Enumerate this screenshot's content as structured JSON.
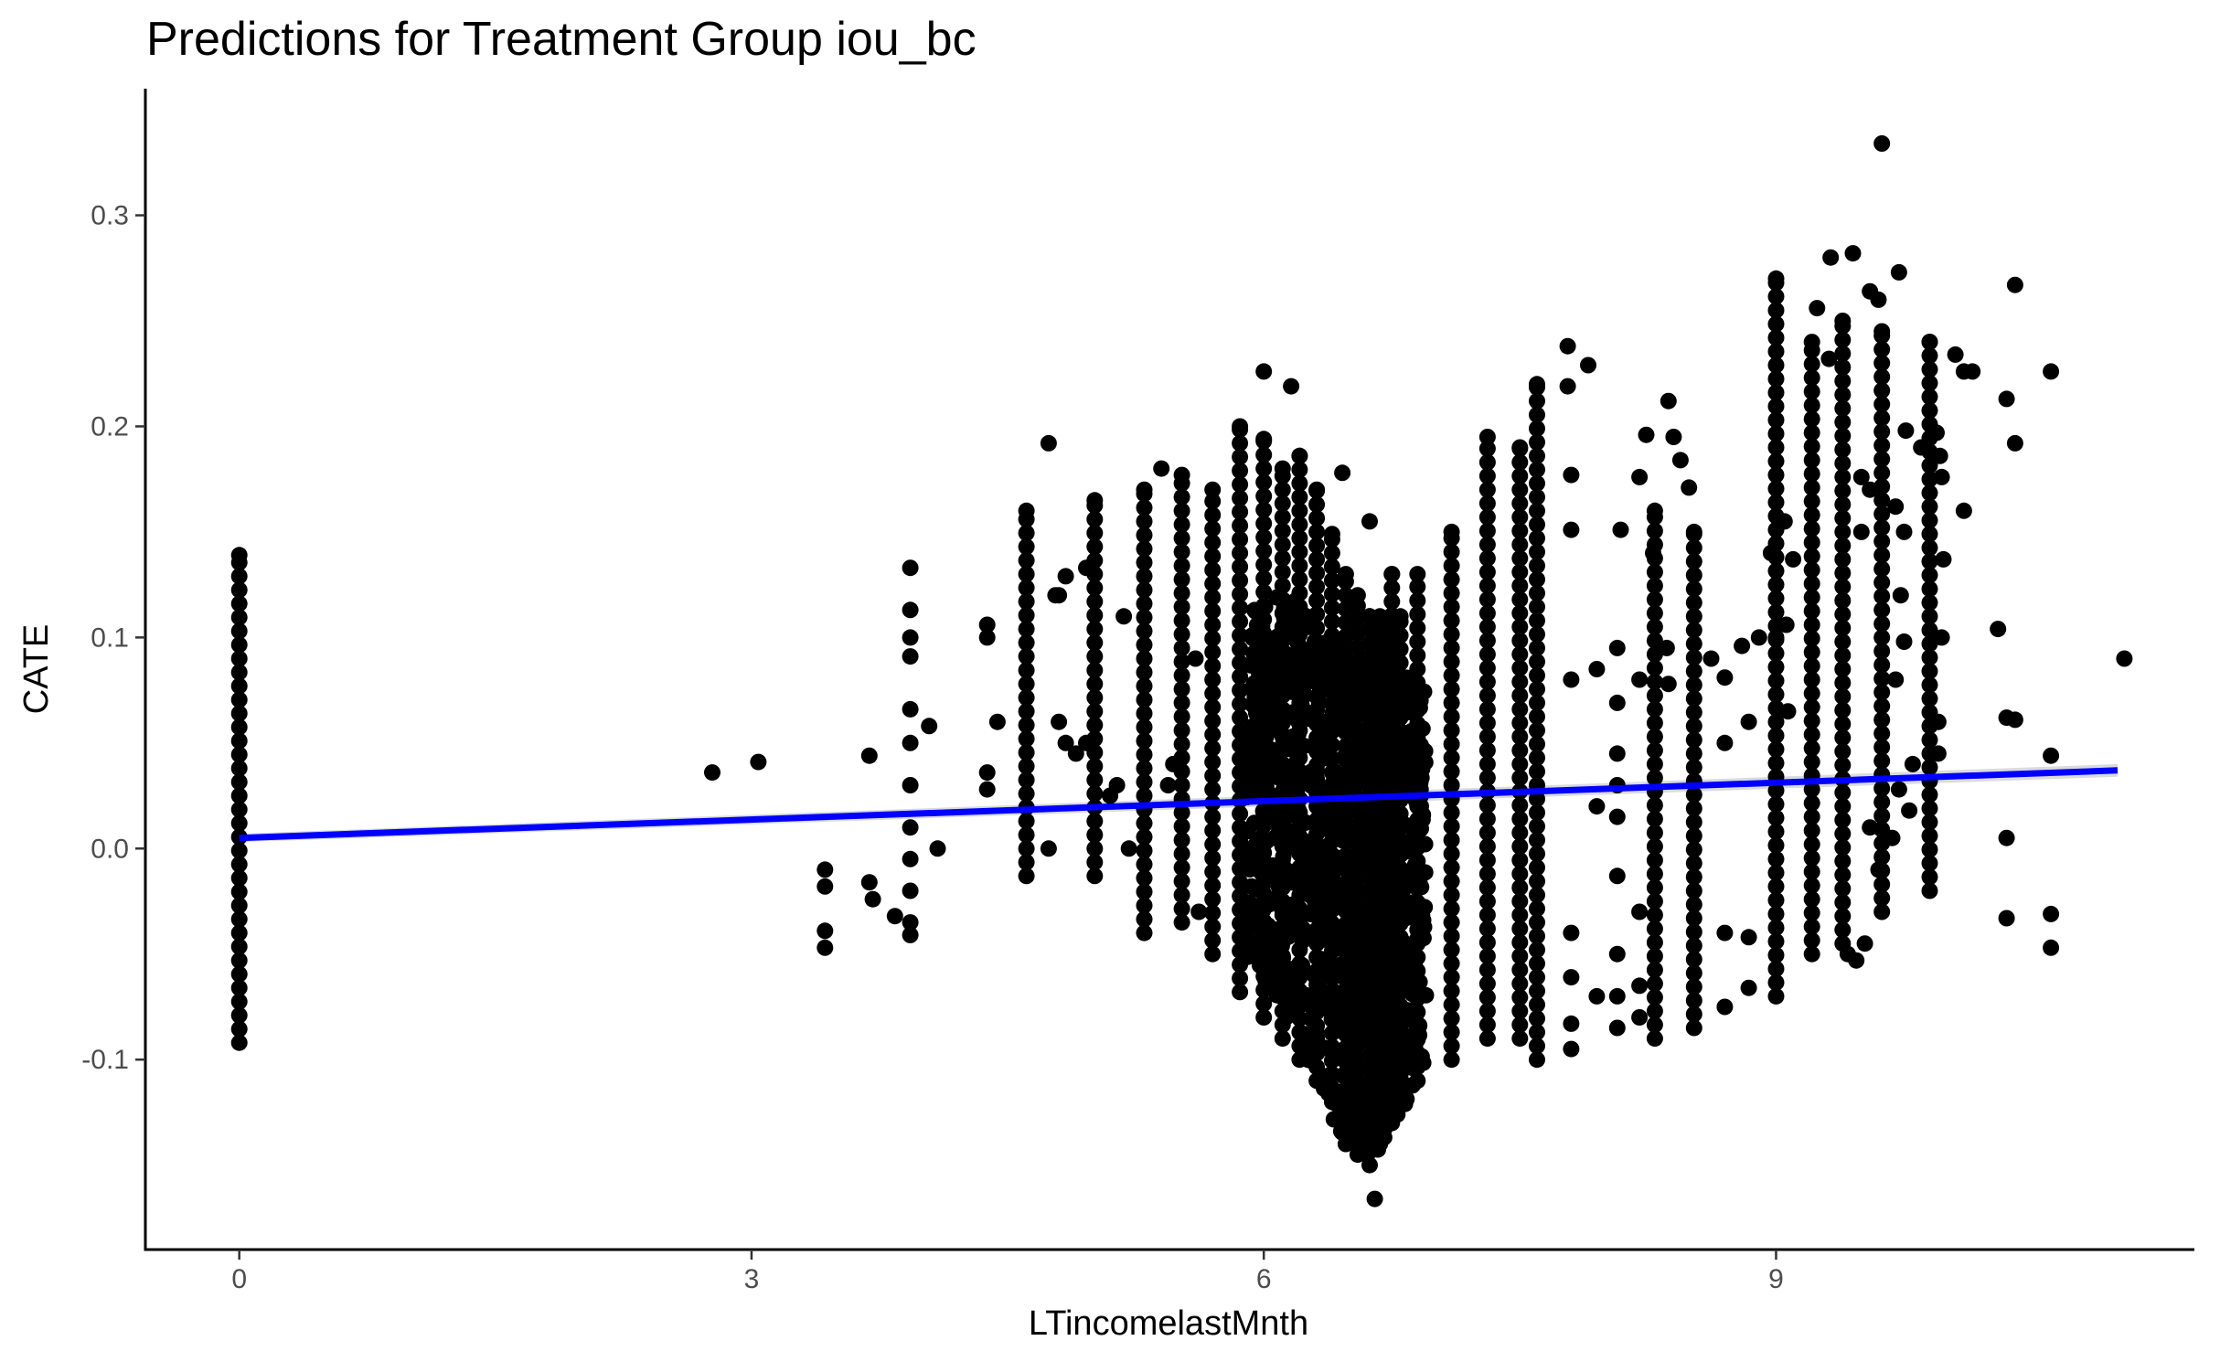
{
  "chart_data": {
    "type": "scatter",
    "title": "Predictions for Treatment Group iou_bc",
    "xlabel": "LTincomelastMnth",
    "ylabel": "CATE",
    "xlim": [
      -0.55,
      11.45
    ],
    "ylim": [
      -0.19,
      0.36
    ],
    "x_ticks": [
      0,
      3,
      6,
      9
    ],
    "x_tick_labels": [
      "0",
      "3",
      "6",
      "9"
    ],
    "y_ticks": [
      -0.1,
      0.0,
      0.1,
      0.2,
      0.3
    ],
    "y_tick_labels": [
      "-0.1",
      "0.0",
      "0.1",
      "0.2",
      "0.3"
    ],
    "grid": false,
    "legend": "none",
    "point_color": "#000000",
    "trend_color": "#0000ff",
    "trend": {
      "method": "linear",
      "x": [
        0,
        11
      ],
      "y": [
        0.005,
        0.037
      ]
    },
    "columns": [
      {
        "x": 0,
        "ymin": -0.092,
        "ymax": 0.139
      },
      {
        "x": 4.61,
        "ymin": -0.013,
        "ymax": 0.16
      },
      {
        "x": 5.01,
        "ymin": -0.013,
        "ymax": 0.165
      },
      {
        "x": 5.3,
        "ymin": -0.04,
        "ymax": 0.17
      },
      {
        "x": 5.52,
        "ymin": -0.035,
        "ymax": 0.177
      },
      {
        "x": 5.7,
        "ymin": -0.05,
        "ymax": 0.17
      },
      {
        "x": 5.86,
        "ymin": -0.068,
        "ymax": 0.2
      },
      {
        "x": 6.0,
        "ymin": -0.08,
        "ymax": 0.194
      },
      {
        "x": 6.11,
        "ymin": -0.09,
        "ymax": 0.18
      },
      {
        "x": 6.21,
        "ymin": -0.1,
        "ymax": 0.186
      },
      {
        "x": 6.31,
        "ymin": -0.11,
        "ymax": 0.17
      },
      {
        "x": 6.4,
        "ymin": -0.12,
        "ymax": 0.149
      },
      {
        "x": 6.48,
        "ymin": -0.14,
        "ymax": 0.13
      },
      {
        "x": 6.55,
        "ymin": -0.145,
        "ymax": 0.12
      },
      {
        "x": 6.62,
        "ymin": -0.15,
        "ymax": 0.11
      },
      {
        "x": 6.68,
        "ymin": -0.14,
        "ymax": 0.11
      },
      {
        "x": 6.75,
        "ymin": -0.13,
        "ymax": 0.13
      },
      {
        "x": 6.8,
        "ymin": -0.12,
        "ymax": 0.11
      },
      {
        "x": 6.9,
        "ymin": -0.11,
        "ymax": 0.13
      },
      {
        "x": 7.1,
        "ymin": -0.1,
        "ymax": 0.15
      },
      {
        "x": 7.31,
        "ymin": -0.09,
        "ymax": 0.195
      },
      {
        "x": 7.5,
        "ymin": -0.09,
        "ymax": 0.19
      },
      {
        "x": 7.6,
        "ymin": -0.1,
        "ymax": 0.22
      },
      {
        "x": 8.29,
        "ymin": -0.09,
        "ymax": 0.16
      },
      {
        "x": 8.52,
        "ymin": -0.085,
        "ymax": 0.15
      },
      {
        "x": 9.0,
        "ymin": -0.07,
        "ymax": 0.27
      },
      {
        "x": 9.21,
        "ymin": -0.05,
        "ymax": 0.24
      },
      {
        "x": 9.39,
        "ymin": -0.045,
        "ymax": 0.25
      },
      {
        "x": 9.62,
        "ymin": -0.03,
        "ymax": 0.245
      },
      {
        "x": 9.9,
        "ymin": -0.02,
        "ymax": 0.24
      }
    ],
    "points": [
      {
        "x": 2.77,
        "y": 0.036
      },
      {
        "x": 3.04,
        "y": 0.041
      },
      {
        "x": 3.43,
        "y": -0.01
      },
      {
        "x": 3.43,
        "y": -0.018
      },
      {
        "x": 3.43,
        "y": -0.039
      },
      {
        "x": 3.43,
        "y": -0.047
      },
      {
        "x": 3.69,
        "y": 0.044
      },
      {
        "x": 3.69,
        "y": -0.016
      },
      {
        "x": 3.71,
        "y": -0.024
      },
      {
        "x": 3.84,
        "y": -0.032
      },
      {
        "x": 3.93,
        "y": 0.133
      },
      {
        "x": 3.93,
        "y": 0.113
      },
      {
        "x": 3.93,
        "y": 0.1
      },
      {
        "x": 3.93,
        "y": 0.091
      },
      {
        "x": 3.93,
        "y": 0.066
      },
      {
        "x": 3.93,
        "y": 0.05
      },
      {
        "x": 3.93,
        "y": 0.03
      },
      {
        "x": 3.93,
        "y": 0.01
      },
      {
        "x": 3.93,
        "y": -0.005
      },
      {
        "x": 3.93,
        "y": -0.02
      },
      {
        "x": 3.93,
        "y": -0.035
      },
      {
        "x": 3.93,
        "y": -0.041
      },
      {
        "x": 4.04,
        "y": 0.058
      },
      {
        "x": 4.09,
        "y": 0.0
      },
      {
        "x": 4.38,
        "y": 0.106
      },
      {
        "x": 4.38,
        "y": 0.1
      },
      {
        "x": 4.38,
        "y": 0.036
      },
      {
        "x": 4.38,
        "y": 0.028
      },
      {
        "x": 4.44,
        "y": 0.06
      },
      {
        "x": 4.74,
        "y": 0.192
      },
      {
        "x": 4.78,
        "y": 0.12
      },
      {
        "x": 4.8,
        "y": 0.12
      },
      {
        "x": 4.84,
        "y": 0.129
      },
      {
        "x": 4.8,
        "y": 0.06
      },
      {
        "x": 4.84,
        "y": 0.05
      },
      {
        "x": 4.9,
        "y": 0.045
      },
      {
        "x": 4.74,
        "y": 0.0
      },
      {
        "x": 4.96,
        "y": 0.133
      },
      {
        "x": 4.96,
        "y": 0.05
      },
      {
        "x": 5.1,
        "y": 0.025
      },
      {
        "x": 5.14,
        "y": 0.03
      },
      {
        "x": 5.21,
        "y": 0.0
      },
      {
        "x": 5.18,
        "y": 0.11
      },
      {
        "x": 5.4,
        "y": 0.18
      },
      {
        "x": 5.44,
        "y": 0.03
      },
      {
        "x": 5.47,
        "y": 0.04
      },
      {
        "x": 5.6,
        "y": 0.09
      },
      {
        "x": 5.62,
        "y": -0.03
      },
      {
        "x": 6.0,
        "y": 0.226
      },
      {
        "x": 6.16,
        "y": 0.219
      },
      {
        "x": 6.46,
        "y": 0.178
      },
      {
        "x": 6.62,
        "y": 0.155
      },
      {
        "x": 6.65,
        "y": -0.166
      },
      {
        "x": 7.78,
        "y": 0.238
      },
      {
        "x": 7.9,
        "y": 0.229
      },
      {
        "x": 7.78,
        "y": 0.219
      },
      {
        "x": 7.8,
        "y": 0.177
      },
      {
        "x": 7.8,
        "y": 0.151
      },
      {
        "x": 7.8,
        "y": 0.08
      },
      {
        "x": 7.8,
        "y": -0.04
      },
      {
        "x": 7.8,
        "y": -0.061
      },
      {
        "x": 7.8,
        "y": -0.083
      },
      {
        "x": 7.8,
        "y": -0.095
      },
      {
        "x": 7.95,
        "y": 0.085
      },
      {
        "x": 7.95,
        "y": 0.02
      },
      {
        "x": 7.95,
        "y": -0.07
      },
      {
        "x": 8.07,
        "y": 0.095
      },
      {
        "x": 8.07,
        "y": 0.069
      },
      {
        "x": 8.07,
        "y": 0.045
      },
      {
        "x": 8.07,
        "y": 0.03
      },
      {
        "x": 8.07,
        "y": 0.015
      },
      {
        "x": 8.07,
        "y": -0.013
      },
      {
        "x": 8.07,
        "y": -0.05
      },
      {
        "x": 8.07,
        "y": -0.07
      },
      {
        "x": 8.07,
        "y": -0.085
      },
      {
        "x": 8.09,
        "y": 0.151
      },
      {
        "x": 8.2,
        "y": 0.176
      },
      {
        "x": 8.2,
        "y": 0.08
      },
      {
        "x": 8.2,
        "y": -0.03
      },
      {
        "x": 8.2,
        "y": -0.065
      },
      {
        "x": 8.2,
        "y": -0.08
      },
      {
        "x": 8.24,
        "y": 0.196
      },
      {
        "x": 8.28,
        "y": 0.14
      },
      {
        "x": 8.37,
        "y": 0.212
      },
      {
        "x": 8.4,
        "y": 0.195
      },
      {
        "x": 8.44,
        "y": 0.184
      },
      {
        "x": 8.49,
        "y": 0.171
      },
      {
        "x": 8.36,
        "y": 0.095
      },
      {
        "x": 8.37,
        "y": 0.078
      },
      {
        "x": 8.62,
        "y": 0.09
      },
      {
        "x": 8.7,
        "y": 0.081
      },
      {
        "x": 8.7,
        "y": 0.05
      },
      {
        "x": 8.7,
        "y": -0.04
      },
      {
        "x": 8.7,
        "y": -0.075
      },
      {
        "x": 8.8,
        "y": 0.096
      },
      {
        "x": 8.9,
        "y": 0.1
      },
      {
        "x": 8.84,
        "y": 0.06
      },
      {
        "x": 8.84,
        "y": -0.042
      },
      {
        "x": 8.84,
        "y": -0.066
      },
      {
        "x": 8.97,
        "y": 0.14
      },
      {
        "x": 9.05,
        "y": 0.155
      },
      {
        "x": 9.0,
        "y": 0.1
      },
      {
        "x": 9.06,
        "y": 0.106
      },
      {
        "x": 9.07,
        "y": 0.065
      },
      {
        "x": 9.1,
        "y": 0.137
      },
      {
        "x": 9.32,
        "y": 0.28
      },
      {
        "x": 9.24,
        "y": 0.256
      },
      {
        "x": 9.31,
        "y": 0.232
      },
      {
        "x": 9.45,
        "y": 0.282
      },
      {
        "x": 9.55,
        "y": 0.264
      },
      {
        "x": 9.6,
        "y": 0.26
      },
      {
        "x": 9.62,
        "y": 0.334
      },
      {
        "x": 9.72,
        "y": 0.273
      },
      {
        "x": 9.5,
        "y": 0.176
      },
      {
        "x": 9.55,
        "y": 0.17
      },
      {
        "x": 9.5,
        "y": 0.15
      },
      {
        "x": 9.7,
        "y": 0.162
      },
      {
        "x": 9.75,
        "y": 0.15
      },
      {
        "x": 9.76,
        "y": 0.198
      },
      {
        "x": 9.85,
        "y": 0.19
      },
      {
        "x": 9.94,
        "y": 0.197
      },
      {
        "x": 9.96,
        "y": 0.186
      },
      {
        "x": 9.97,
        "y": 0.176
      },
      {
        "x": 9.97,
        "y": 0.1
      },
      {
        "x": 9.98,
        "y": 0.137
      },
      {
        "x": 9.73,
        "y": 0.12
      },
      {
        "x": 9.75,
        "y": 0.098
      },
      {
        "x": 9.7,
        "y": 0.08
      },
      {
        "x": 9.8,
        "y": 0.04
      },
      {
        "x": 9.72,
        "y": 0.028
      },
      {
        "x": 9.78,
        "y": 0.018
      },
      {
        "x": 9.55,
        "y": 0.01
      },
      {
        "x": 9.6,
        "y": -0.01
      },
      {
        "x": 9.68,
        "y": 0.005
      },
      {
        "x": 9.42,
        "y": -0.05
      },
      {
        "x": 9.47,
        "y": -0.053
      },
      {
        "x": 9.52,
        "y": -0.045
      },
      {
        "x": 9.95,
        "y": 0.06
      },
      {
        "x": 9.95,
        "y": 0.045
      },
      {
        "x": 10.05,
        "y": 0.234
      },
      {
        "x": 10.1,
        "y": 0.226
      },
      {
        "x": 10.15,
        "y": 0.226
      },
      {
        "x": 10.1,
        "y": 0.16
      },
      {
        "x": 10.3,
        "y": 0.104
      },
      {
        "x": 10.35,
        "y": 0.213
      },
      {
        "x": 10.35,
        "y": 0.062
      },
      {
        "x": 10.35,
        "y": 0.005
      },
      {
        "x": 10.35,
        "y": -0.033
      },
      {
        "x": 10.4,
        "y": 0.267
      },
      {
        "x": 10.4,
        "y": 0.192
      },
      {
        "x": 10.4,
        "y": 0.061
      },
      {
        "x": 10.61,
        "y": 0.226
      },
      {
        "x": 10.61,
        "y": 0.044
      },
      {
        "x": 10.61,
        "y": -0.031
      },
      {
        "x": 10.61,
        "y": -0.047
      },
      {
        "x": 11.04,
        "y": 0.09
      }
    ]
  }
}
